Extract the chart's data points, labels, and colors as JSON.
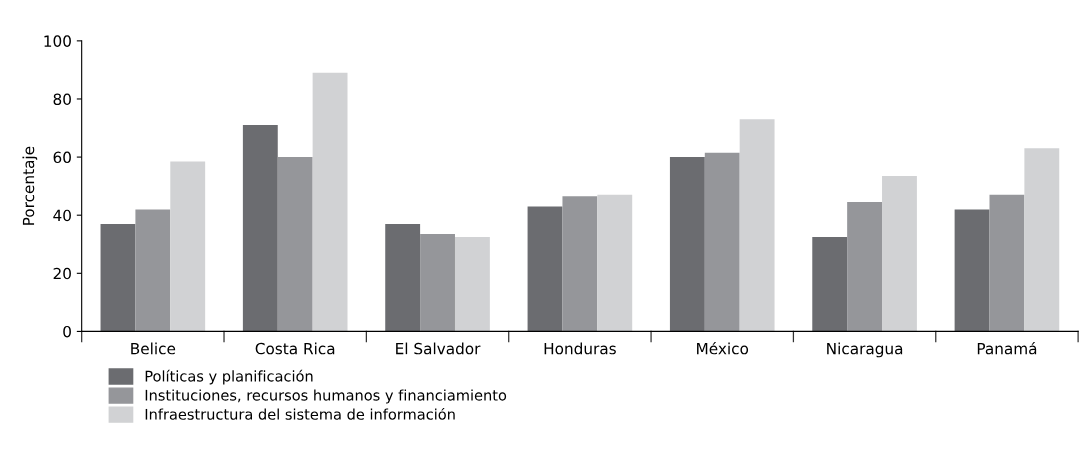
{
  "chart_data": {
    "type": "bar",
    "ylabel": "Porcentaje",
    "categories": [
      "Belice",
      "Costa Rica",
      "El Salvador",
      "Honduras",
      "México",
      "Nicaragua",
      "Panamá"
    ],
    "series": [
      {
        "name": "Políticas y planificación",
        "color": "#6b6c70",
        "values": [
          37,
          71,
          37,
          43,
          60,
          32.5,
          42
        ]
      },
      {
        "name": "Instituciones, recursos humanos y financiamiento",
        "color": "#95969a",
        "values": [
          42,
          60,
          33.5,
          46.5,
          61.5,
          44.5,
          47
        ]
      },
      {
        "name": "Infraestructura del sistema de información",
        "color": "#d1d2d4",
        "values": [
          58.5,
          89,
          32.5,
          47,
          73,
          53.5,
          63
        ]
      }
    ],
    "ylim": [
      0,
      100
    ],
    "yticks": [
      0,
      20,
      40,
      60,
      80,
      100
    ],
    "grid": false,
    "legend": "bottom left"
  }
}
